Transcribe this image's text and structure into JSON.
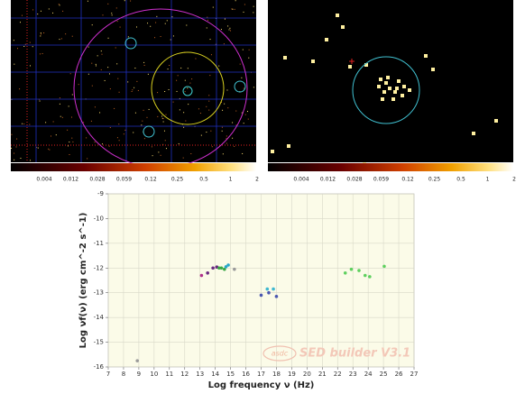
{
  "sky_maps": [
    {
      "colorbar_labels": [
        0.004,
        0.012,
        0.028,
        0.059,
        0.12,
        0.25,
        0.5,
        1,
        2
      ]
    },
    {
      "colorbar_labels": [
        0.004,
        0.012,
        0.028,
        0.059,
        0.12,
        0.25,
        0.5,
        1,
        2
      ]
    }
  ],
  "chart_data": {
    "type": "scatter",
    "x_label": "Log frequency ν (Hz)",
    "y_label": "Log νf(ν) (erg cm^-2 s^-1)",
    "watermark_logo": "asdc",
    "watermark": "SED builder V3.1",
    "xlim": [
      7,
      27
    ],
    "xticks": [
      7,
      8,
      9,
      10,
      11,
      12,
      13,
      14,
      15,
      16,
      17,
      18,
      19,
      20,
      21,
      22,
      23,
      24,
      25,
      26,
      27
    ],
    "ylim": [
      -16,
      -9
    ],
    "yticks": [
      -9,
      -10,
      -11,
      -12,
      -13,
      -14,
      -15,
      -16
    ],
    "grid": true,
    "series": [
      {
        "color": "#b0308a",
        "x": [
          13.1
        ],
        "values": [
          -12.3
        ]
      },
      {
        "color": "#6a2a80",
        "x": [
          13.5,
          13.85,
          14.1
        ],
        "values": [
          -12.2,
          -12.0,
          -11.96
        ]
      },
      {
        "color": "#3aa845",
        "x": [
          14.25,
          14.4,
          14.6
        ],
        "values": [
          -12.0,
          -12.0,
          -12.05
        ]
      },
      {
        "color": "#2aa6c8",
        "x": [
          14.7,
          14.85
        ],
        "values": [
          -11.95,
          -11.88
        ]
      },
      {
        "color": "#9a9a9a",
        "x": [
          8.9,
          15.25
        ],
        "values": [
          -15.75,
          -12.05
        ]
      },
      {
        "color": "#4a57b0",
        "x": [
          17.0,
          17.5,
          18.0
        ],
        "values": [
          -13.1,
          -13.0,
          -13.15
        ]
      },
      {
        "color": "#3fb8d0",
        "x": [
          17.4,
          17.8
        ],
        "values": [
          -12.85,
          -12.85
        ]
      },
      {
        "color": "#5fd05f",
        "x": [
          22.5,
          22.9,
          23.4,
          23.8,
          24.1,
          25.05
        ],
        "values": [
          -12.2,
          -12.05,
          -12.1,
          -12.3,
          -12.35,
          -11.93
        ]
      }
    ]
  }
}
